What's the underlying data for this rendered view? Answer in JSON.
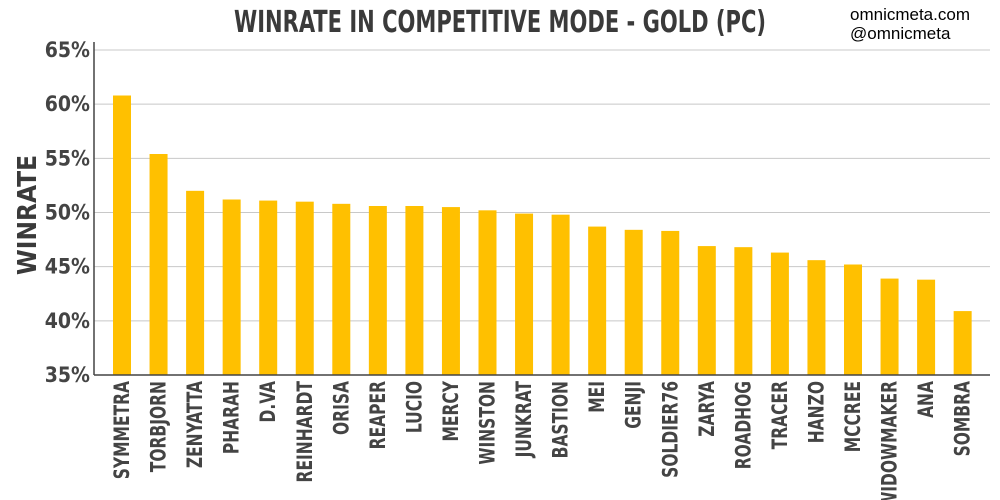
{
  "site": "omnicmeta.com",
  "handle": "@omnicmeta",
  "colors": {
    "bar": "#FFC000",
    "grid": "#c8c8c8",
    "axis": "#444444",
    "title": "#3a3a3a"
  },
  "chart_data": {
    "type": "bar",
    "title": "WINRATE IN COMPETITIVE MODE - GOLD (PC)",
    "xlabel": "",
    "ylabel": "WINRATE",
    "ylim": [
      35,
      65
    ],
    "yticks": [
      35,
      40,
      45,
      50,
      55,
      60,
      65
    ],
    "ytick_labels": [
      "35%",
      "40%",
      "45%",
      "50%",
      "55%",
      "60%",
      "65%"
    ],
    "grid": true,
    "legend": "none",
    "categories": [
      "SYMMETRA",
      "TORBJORN",
      "ZENYATTA",
      "PHARAH",
      "D.VA",
      "REINHARDT",
      "ORISA",
      "REAPER",
      "LUCIO",
      "MERCY",
      "WINSTON",
      "JUNKRAT",
      "BASTION",
      "MEI",
      "GENJI",
      "SOLDIER76",
      "ZARYA",
      "ROADHOG",
      "TRACER",
      "HANZO",
      "MCCREE",
      "WIDOWMAKER",
      "ANA",
      "SOMBRA"
    ],
    "values": [
      60.8,
      55.4,
      52.0,
      51.2,
      51.1,
      51.0,
      50.8,
      50.6,
      50.6,
      50.5,
      50.2,
      49.9,
      49.8,
      48.7,
      48.4,
      48.3,
      46.9,
      46.8,
      46.3,
      45.6,
      45.2,
      43.9,
      43.8,
      40.9
    ]
  }
}
